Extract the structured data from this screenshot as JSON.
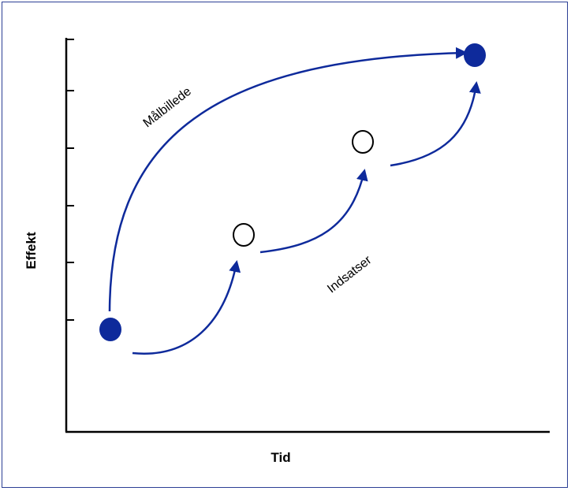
{
  "diagram": {
    "x_axis_label": "Tid",
    "y_axis_label": "Effekt",
    "target_curve_label": "Målbillede",
    "steps_label": "Indsatser",
    "nodes": [
      {
        "id": "start",
        "kind": "filled"
      },
      {
        "id": "step-1",
        "kind": "open"
      },
      {
        "id": "step-2",
        "kind": "open"
      },
      {
        "id": "target",
        "kind": "filled"
      }
    ],
    "colors": {
      "accent": "#0e2a9b",
      "frame": "#2b3f95",
      "axis": "#000000"
    }
  }
}
